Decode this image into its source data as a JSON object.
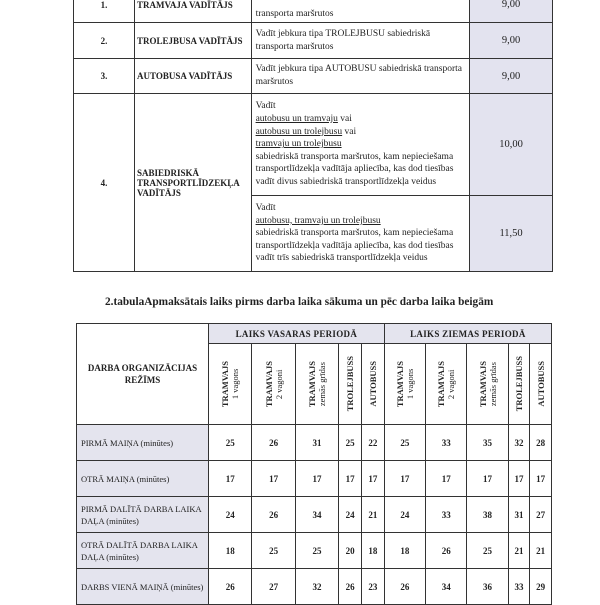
{
  "table1": {
    "rows": [
      {
        "num": "1.",
        "role": "TRAMVAJA VADĪTĀJS",
        "desc": "transporta maršrutos",
        "value": "9,00"
      },
      {
        "num": "2.",
        "role": "TROLEJBUSA VADĪTĀJS",
        "desc": "Vadīt jebkura tipa TROLEJBUSU sabiedriskā transporta maršrutos",
        "value": "9,00"
      },
      {
        "num": "3.",
        "role": "AUTOBUSA VADĪTĀJS",
        "desc": "Vadīt jebkura tipa AUTOBUSU sabiedriskā transporta maršrutos",
        "value": "9,00"
      }
    ],
    "row4": {
      "num": "4.",
      "role": "SABIEDRISKĀ TRANSPORTLĪDZEKĻA VADĪTĀJS",
      "a": {
        "l1": "Vadīt",
        "u1": "autobusu un tramvaju",
        "t1": " vai",
        "u2": "autobusu un trolejbusu",
        "t2": " vai",
        "u3": "tramvaju un trolejbusu",
        "rest": "sabiedriskā transporta maršrutos, kam nepieciešama transportlīdzekļa vadītāja apliecība, kas dod tiesības vadīt divus sabiedriskā transportlīdzekļa veidus",
        "value": "10,00"
      },
      "b": {
        "l1": "Vadīt",
        "u1": "autobusu, tramvaju un trolejbusu",
        "rest": "sabiedriskā transporta maršrutos, kam nepieciešama transportlīdzekļa vadītāja apliecība, kas dod tiesības vadīt trīs sabiedriskā transportlīdzekļa veidus",
        "value": "11,50"
      }
    }
  },
  "table2": {
    "title": "2.tabulaApmaksātais laiks pirms darba laika sākuma un pēc darba laika beigām",
    "corner": "DARBA ORGANIZĀCIJAS REŽĪMS",
    "periods": [
      "LAIKS VASARAS PERIODĀ",
      "LAIKS ZIEMAS PERIODĀ"
    ],
    "columns": [
      {
        "main": "TRAMVAJS",
        "sub": "1 vagons"
      },
      {
        "main": "TRAMVAJS",
        "sub": "2 vagoni"
      },
      {
        "main": "TRAMVAJS",
        "sub": "zemās grīdas"
      },
      {
        "main": "TROLEJBUSS",
        "sub": ""
      },
      {
        "main": "AUTOBUSS",
        "sub": ""
      },
      {
        "main": "TRAMVAJS",
        "sub": "1 vagons"
      },
      {
        "main": "TRAMVAJS",
        "sub": "2 vagoni"
      },
      {
        "main": "TRAMVAJS",
        "sub": "zemās grīdas"
      },
      {
        "main": "TROLEJBUSS",
        "sub": ""
      },
      {
        "main": "AUTOBUSS",
        "sub": ""
      }
    ],
    "rows": [
      {
        "label": "PIRMĀ MAIŅA (minūtes)",
        "values": [
          "25",
          "26",
          "31",
          "25",
          "22",
          "25",
          "33",
          "35",
          "32",
          "28"
        ]
      },
      {
        "label": "OTRĀ MAIŅA (minūtes)",
        "values": [
          "17",
          "17",
          "17",
          "17",
          "17",
          "17",
          "17",
          "17",
          "17",
          "17"
        ]
      },
      {
        "label": "PIRMĀ DALĪTĀ DARBA LAIKA DAĻA (minūtes)",
        "values": [
          "24",
          "26",
          "34",
          "24",
          "21",
          "24",
          "33",
          "38",
          "31",
          "27"
        ]
      },
      {
        "label": "OTRĀ DALĪTĀ DARBA LAIKA DAĻA (minūtes)",
        "values": [
          "18",
          "25",
          "25",
          "20",
          "18",
          "18",
          "26",
          "25",
          "21",
          "21"
        ]
      },
      {
        "label": "DARBS VIENĀ MAIŅĀ (minūtes)",
        "values": [
          "26",
          "27",
          "32",
          "26",
          "23",
          "26",
          "34",
          "36",
          "33",
          "29"
        ]
      }
    ]
  }
}
